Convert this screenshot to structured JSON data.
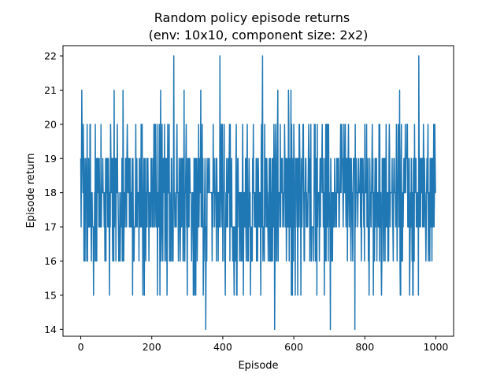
{
  "chart_data": {
    "type": "line",
    "title_line1": "Random policy episode returns",
    "title_line2": "(env: 10x10, component size: 2x2)",
    "xlabel": "Episode",
    "ylabel": "Episode return",
    "xlim": [
      -50,
      1050
    ],
    "ylim": [
      13.8,
      22.3
    ],
    "x_ticks": [
      0,
      200,
      400,
      600,
      800,
      1000
    ],
    "y_ticks": [
      14,
      15,
      16,
      17,
      18,
      19,
      20,
      21,
      22
    ],
    "grid": false,
    "legend": "none",
    "series": [
      {
        "color": "#1f77b4",
        "x_start": 0,
        "x_end": 1000,
        "num_points": 1001,
        "value_min": 14,
        "value_max": 22,
        "typical_range": [
          16,
          19
        ],
        "peaks_22": [
          262,
          392,
          512,
          952
        ],
        "troughs_14": [
          352,
          546,
          703,
          772
        ]
      }
    ]
  }
}
